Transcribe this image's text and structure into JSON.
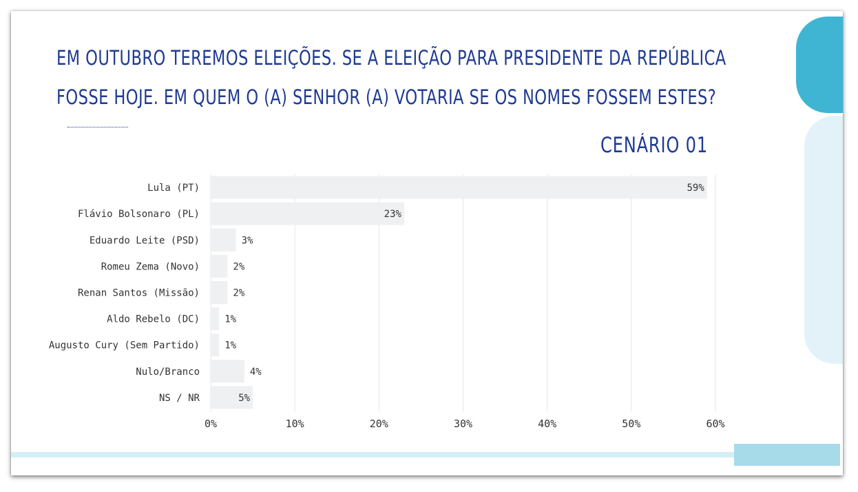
{
  "header": {
    "title_line1": "EM OUTUBRO TEREMOS ELEIÇÕES. SE A ELEIÇÃO PARA PRESIDENTE DA REPÚBLICA",
    "title_line2": "FOSSE HOJE. EM QUEM O (A) SENHOR (A) VOTARIA SE OS NOMES FOSSEM ESTES?",
    "scenario": "CENÁRIO 01"
  },
  "colors": {
    "title": "#1f3a93",
    "bar": "#eef0f2",
    "grid": "#e6e6e6",
    "accent_dark": "#3fb5d3",
    "accent_light": "#e2f2f8"
  },
  "chart_data": {
    "type": "bar",
    "orientation": "horizontal",
    "categories": [
      "Lula (PT)",
      "Flávio Bolsonaro (PL)",
      "Eduardo Leite (PSD)",
      "Romeu Zema (Novo)",
      "Renan Santos (Missão)",
      "Aldo Rebelo (DC)",
      "Augusto Cury (Sem Partido)",
      "Nulo/Branco",
      "NS / NR"
    ],
    "values": [
      59,
      23,
      3,
      2,
      2,
      1,
      1,
      4,
      5
    ],
    "value_labels": [
      "59%",
      "23%",
      "3%",
      "2%",
      "2%",
      "1%",
      "1%",
      "4%",
      "5%"
    ],
    "xlim": [
      0,
      60
    ],
    "xticks": [
      0,
      10,
      20,
      30,
      40,
      50,
      60
    ],
    "xtick_labels": [
      "0%",
      "10%",
      "20%",
      "30%",
      "40%",
      "50%",
      "60%"
    ],
    "grid": true
  }
}
